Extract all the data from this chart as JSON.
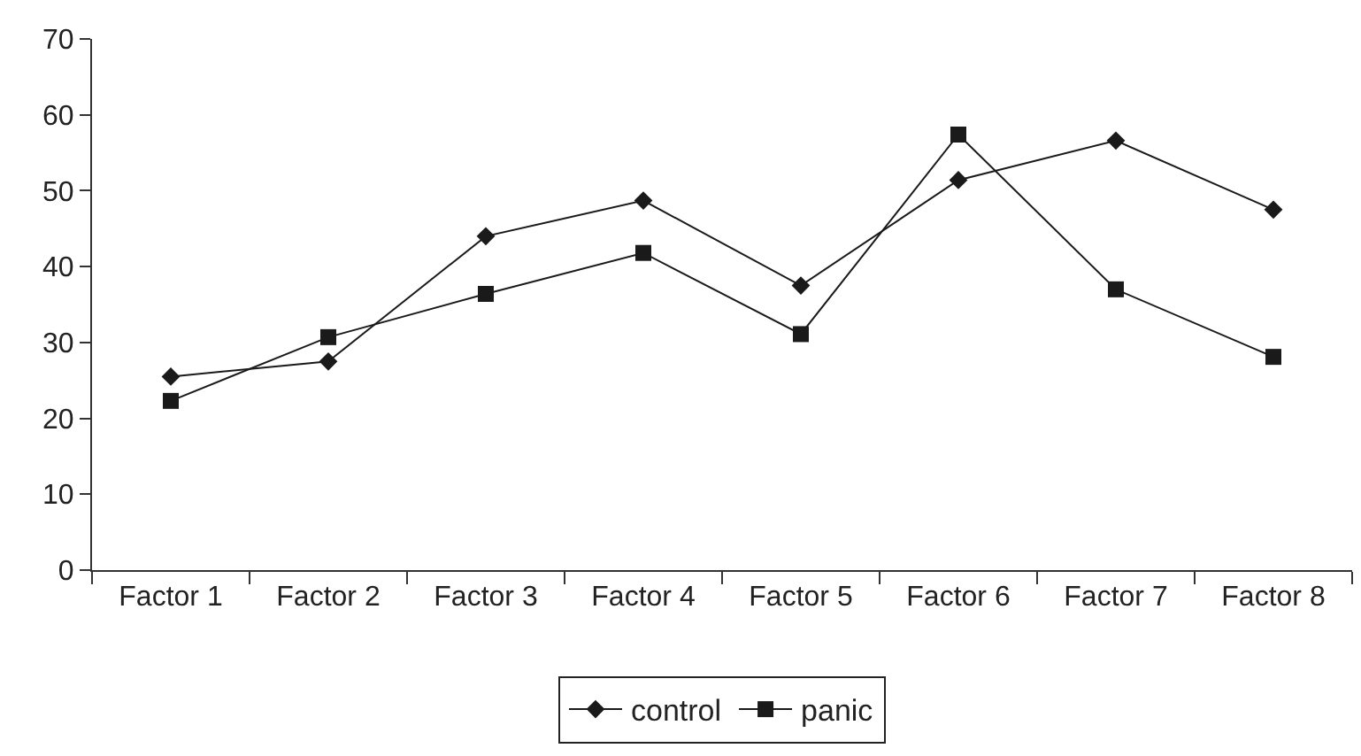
{
  "chart_data": {
    "type": "line",
    "categories": [
      "Factor 1",
      "Factor 2",
      "Factor 3",
      "Factor 4",
      "Factor 5",
      "Factor 6",
      "Factor 7",
      "Factor 8"
    ],
    "series": [
      {
        "name": "control",
        "color": "#1a1a1a",
        "marker": "diamond",
        "values": [
          25.5,
          27.5,
          44.0,
          48.7,
          37.5,
          51.4,
          56.6,
          47.5
        ]
      },
      {
        "name": "panic",
        "color": "#1a1a1a",
        "marker": "square",
        "values": [
          22.3,
          30.7,
          36.4,
          41.8,
          31.1,
          57.4,
          37.0,
          28.1
        ]
      }
    ],
    "ylim": [
      0,
      70
    ],
    "yticks": [
      0,
      10,
      20,
      30,
      40,
      50,
      60,
      70
    ],
    "legend": "bottom",
    "line_style": "solid"
  }
}
